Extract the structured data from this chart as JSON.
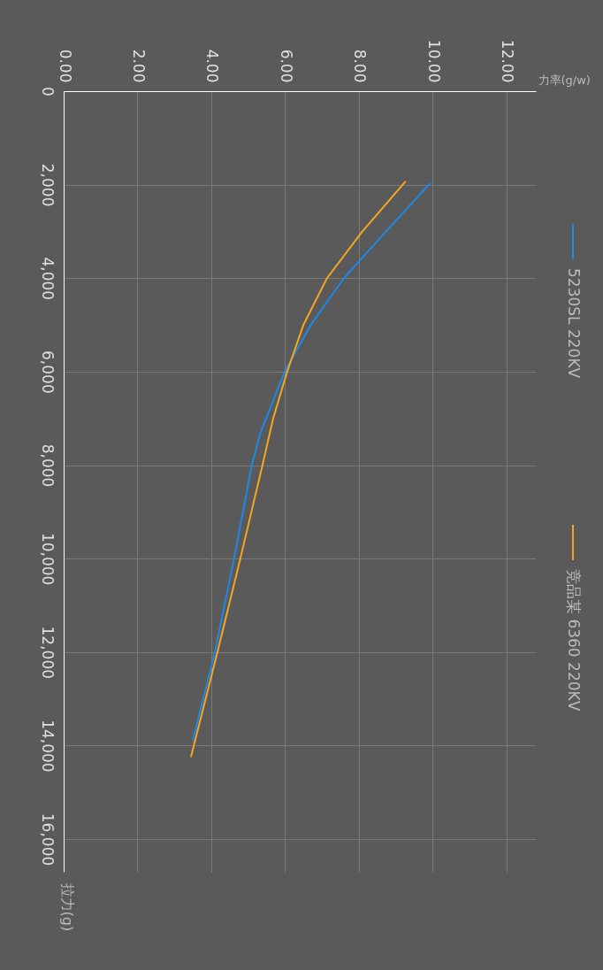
{
  "chart_data": {
    "type": "line",
    "xlabel": "力率(g/w)",
    "ylabel": "拉力(g)",
    "xlim": [
      0,
      12.8
    ],
    "xticks": [
      {
        "value": 0,
        "label": "0.00"
      },
      {
        "value": 2,
        "label": "2.00"
      },
      {
        "value": 4,
        "label": "4.00"
      },
      {
        "value": 6,
        "label": "6.00"
      },
      {
        "value": 8,
        "label": "8.00"
      },
      {
        "value": 10,
        "label": "10.00"
      },
      {
        "value": 12,
        "label": "12.00"
      }
    ],
    "ylim": [
      16700,
      0
    ],
    "yticks": [
      0,
      {
        "value": 2000,
        "label": "2,000"
      },
      {
        "value": 4000,
        "label": "4,000"
      },
      {
        "value": 6000,
        "label": "6,000"
      },
      {
        "value": 8000,
        "label": "8,000"
      },
      {
        "value": 10000,
        "label": "10,000"
      },
      {
        "value": 12000,
        "label": "12,000"
      },
      {
        "value": 14000,
        "label": "14,000"
      },
      {
        "value": 16000,
        "label": "16,000"
      }
    ],
    "grid": true,
    "legend": "right",
    "marker": "none",
    "line_style": "solid",
    "series": [
      {
        "name": "5230SL 220KV",
        "color": "#1e88e5",
        "x": [
          9.94,
          8.74,
          7.6,
          6.7,
          5.99,
          5.34,
          5.1,
          4.62,
          4.1,
          3.5
        ],
        "values": [
          1970,
          3000,
          4000,
          5000,
          6000,
          7300,
          8000,
          10000,
          12000,
          13890
        ]
      },
      {
        "name": "竞品某 6360 220KV",
        "color": "#f5a623",
        "x": [
          9.27,
          8.1,
          7.14,
          6.5,
          6.06,
          5.68,
          5.39,
          4.79,
          4.17,
          3.45
        ],
        "values": [
          1930,
          3000,
          4000,
          5000,
          6000,
          7000,
          8000,
          10000,
          12000,
          14250
        ]
      }
    ]
  }
}
